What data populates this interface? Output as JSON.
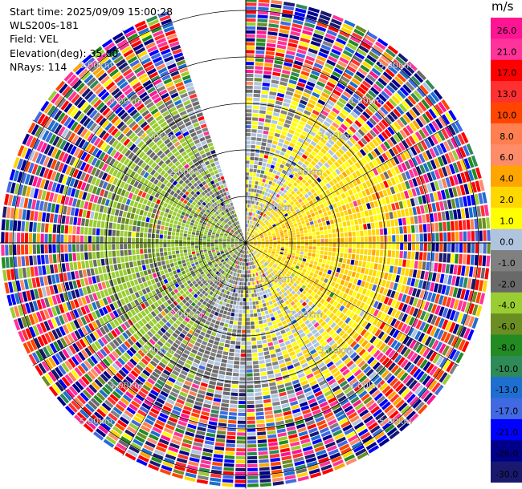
{
  "header": {
    "start_time": "Start time: 2025/09/09 15:00:28",
    "instrument": "WLS200s-181",
    "field": "Field: VEL",
    "elevation": "Elevation(deg): 35.00",
    "nrays": "NRays: 114"
  },
  "colorbar": {
    "unit": "m/s",
    "ticks": [
      "26.0",
      "21.0",
      "17.0",
      "13.0",
      "10.0",
      "8.0",
      "6.0",
      "4.0",
      "2.0",
      "1.0",
      "0.0",
      "-1.0",
      "-2.0",
      "-4.0",
      "-6.0",
      "-8.0",
      "-10.0",
      "-13.0",
      "-17.0",
      "-21.0",
      "-26.0",
      "-30.0"
    ],
    "colors": [
      "#ff1493",
      "#ff3399",
      "#ff0000",
      "#ff3030",
      "#ff4500",
      "#ff7f50",
      "#ff8c69",
      "#ffa500",
      "#ffd700",
      "#ffff00",
      "#b0c4de",
      "#808080",
      "#696969",
      "#9acd32",
      "#6b8e23",
      "#228b22",
      "#2e8b57",
      "#1e6fd0",
      "#4169e1",
      "#0000ff",
      "#00008b",
      "#191970"
    ]
  },
  "chart_data": {
    "type": "heatmap",
    "projection": "polar-ppi",
    "field": "VEL",
    "unit": "m/s",
    "elevation_deg": 35.0,
    "nrays": 114,
    "start_time": "2025/09/09 15:00:28",
    "range_rings_km": [
      1.0,
      2.0,
      3.0,
      4.0,
      5.0
    ],
    "range_labels": [
      "1.00km",
      "2.00km",
      "3.00km",
      "4.00km",
      "5.00km"
    ],
    "max_range_km": 5.25,
    "missing_sector_deg": [
      -18,
      0
    ],
    "pattern": {
      "east_sector_mean_ms": 3.0,
      "west_sector_mean_ms": -3.0,
      "far_range_noise_km": 3.6
    }
  }
}
